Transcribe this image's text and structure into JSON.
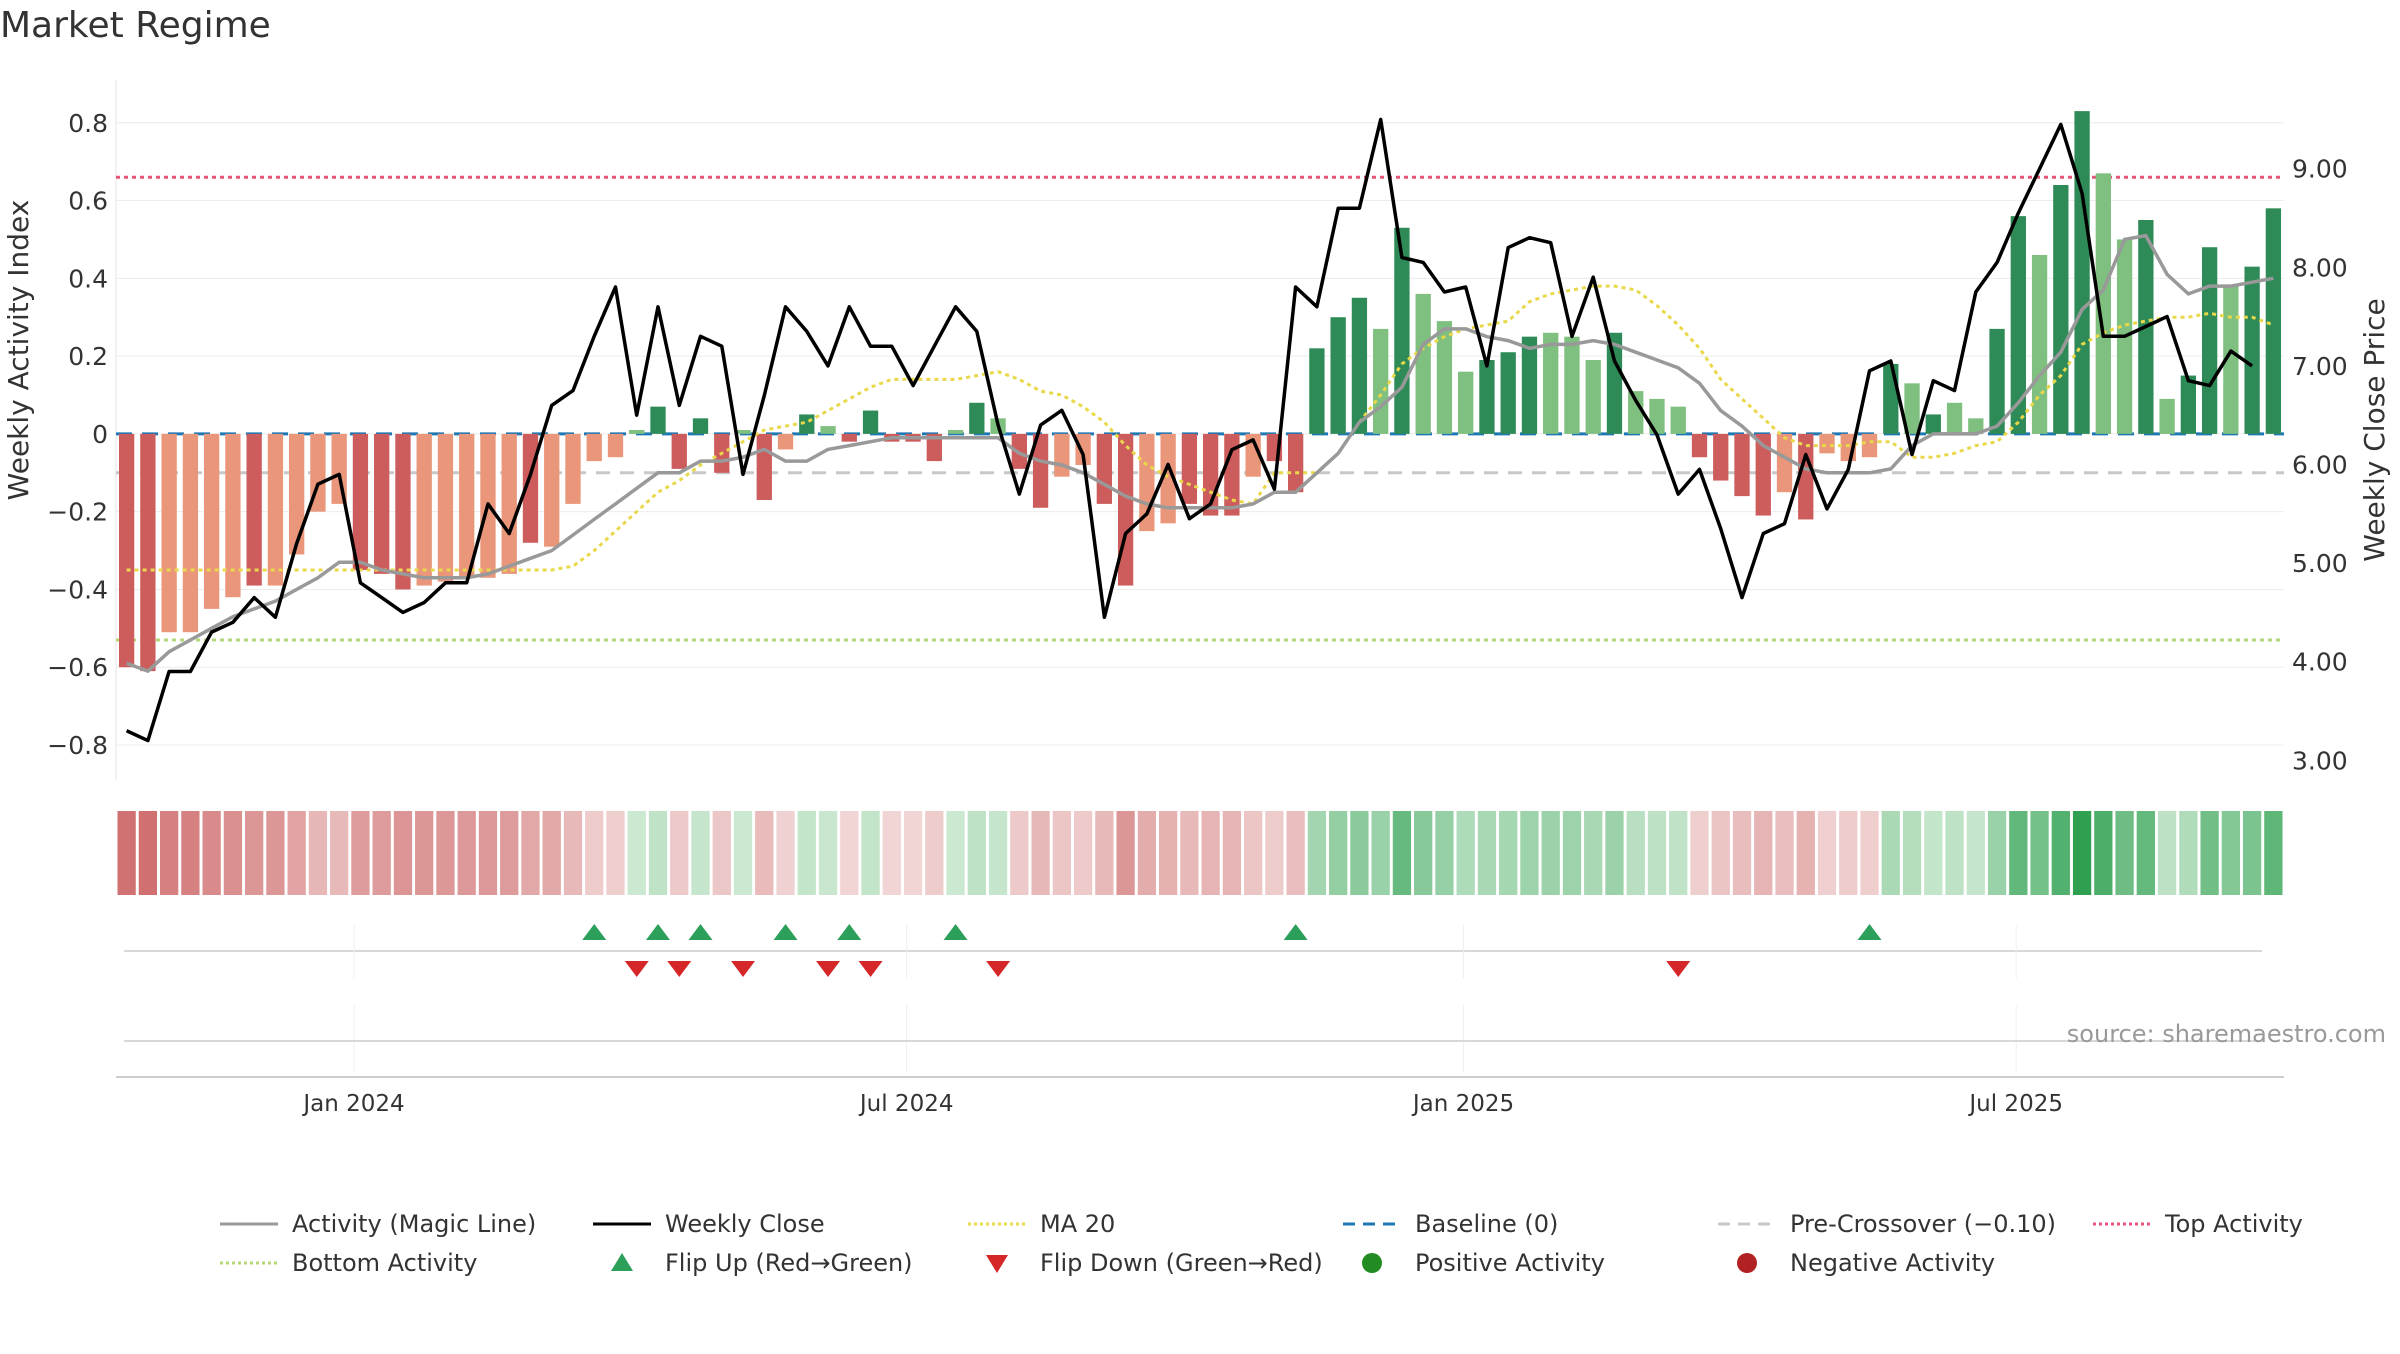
{
  "title": "Market Regime",
  "source": "source: sharemaestro.com",
  "colors": {
    "pos_dark": "#2e8b57",
    "pos_light": "#7fbf7f",
    "neg_dark": "#cd5c5c",
    "neg_light": "#e9967a",
    "close": "#000000",
    "magic": "#999999",
    "ma20": "#e8d84a",
    "baseline": "#1f77b4",
    "pre": "#c8c8c8",
    "top": "#e8557a",
    "bottom": "#b5d77a",
    "flip_up": "#2ca05a",
    "flip_down": "#d62728",
    "pos_marker": "#228b22",
    "neg_marker": "#b22222"
  },
  "chart_data": {
    "type": "bar",
    "title": "Market Regime",
    "ylabel": "Weekly Activity Index",
    "y2label": "Weekly Close Price",
    "ylim": [
      -0.89,
      0.91
    ],
    "y2lim": [
      2.8,
      9.9
    ],
    "yticks": [
      "0.8",
      "0.6",
      "0.4",
      "0.2",
      "0",
      "−0.2",
      "−0.4",
      "−0.6",
      "−0.8"
    ],
    "ytick_values": [
      0.8,
      0.6,
      0.4,
      0.2,
      0,
      -0.2,
      -0.4,
      -0.6,
      -0.8
    ],
    "y2ticks": [
      "9.00",
      "8.00",
      "7.00",
      "6.00",
      "5.00",
      "4.00",
      "3.00"
    ],
    "y2tick_values": [
      9,
      8,
      7,
      6,
      5,
      4,
      3
    ],
    "xticks": [
      "Jan 2024",
      "Jul 2024",
      "Jan 2025",
      "Jul 2025"
    ],
    "xtick_weeks": [
      11.2,
      37.2,
      63.4,
      89.4
    ],
    "top_activity": 0.66,
    "bottom_activity": -0.53,
    "pre_crossover": -0.1,
    "baseline": 0,
    "activity": [
      -0.6,
      -0.61,
      -0.51,
      -0.51,
      -0.45,
      -0.42,
      -0.39,
      -0.39,
      -0.31,
      -0.2,
      -0.18,
      -0.35,
      -0.36,
      -0.4,
      -0.39,
      -0.38,
      -0.37,
      -0.37,
      -0.36,
      -0.28,
      -0.29,
      -0.18,
      -0.07,
      -0.06,
      0.01,
      0.07,
      -0.09,
      0.04,
      -0.1,
      0.01,
      -0.17,
      -0.04,
      0.05,
      0.02,
      -0.02,
      0.06,
      -0.02,
      -0.02,
      -0.07,
      0.01,
      0.08,
      0.04,
      -0.09,
      -0.19,
      -0.11,
      -0.08,
      -0.18,
      -0.39,
      -0.25,
      -0.23,
      -0.18,
      -0.21,
      -0.21,
      -0.11,
      -0.07,
      -0.15,
      0.22,
      0.3,
      0.35,
      0.27,
      0.53,
      0.36,
      0.29,
      0.16,
      0.19,
      0.21,
      0.25,
      0.26,
      0.25,
      0.19,
      0.26,
      0.11,
      0.09,
      0.07,
      -0.06,
      -0.12,
      -0.16,
      -0.21,
      -0.15,
      -0.22,
      -0.05,
      -0.07,
      -0.06,
      0.18,
      0.13,
      0.05,
      0.08,
      0.04,
      0.27,
      0.56,
      0.46,
      0.64,
      0.83,
      0.67,
      0.5,
      0.55,
      0.09,
      0.15,
      0.48,
      0.38,
      0.43,
      0.58
    ],
    "shade": [
      "d",
      "d",
      "l",
      "l",
      "l",
      "l",
      "d",
      "l",
      "l",
      "l",
      "l",
      "d",
      "d",
      "d",
      "l",
      "l",
      "l",
      "l",
      "l",
      "d",
      "l",
      "l",
      "l",
      "l",
      "l",
      "d",
      "d",
      "d",
      "d",
      "l",
      "d",
      "l",
      "d",
      "l",
      "d",
      "d",
      "d",
      "d",
      "d",
      "l",
      "d",
      "l",
      "d",
      "d",
      "l",
      "l",
      "d",
      "d",
      "l",
      "l",
      "d",
      "d",
      "d",
      "l",
      "d",
      "d",
      "d",
      "d",
      "d",
      "l",
      "d",
      "l",
      "l",
      "l",
      "d",
      "d",
      "d",
      "l",
      "l",
      "l",
      "d",
      "l",
      "l",
      "l",
      "d",
      "d",
      "d",
      "d",
      "l",
      "d",
      "l",
      "l",
      "l",
      "d",
      "l",
      "d",
      "l",
      "l",
      "d",
      "d",
      "l",
      "d",
      "d",
      "l",
      "l",
      "d",
      "l",
      "d",
      "d",
      "l",
      "d",
      "d"
    ],
    "magic_line": [
      -0.59,
      -0.61,
      -0.56,
      -0.53,
      -0.5,
      -0.47,
      -0.45,
      -0.43,
      -0.4,
      -0.37,
      -0.33,
      -0.33,
      -0.35,
      -0.36,
      -0.37,
      -0.37,
      -0.37,
      -0.36,
      -0.34,
      -0.32,
      -0.3,
      -0.26,
      -0.22,
      -0.18,
      -0.14,
      -0.1,
      -0.1,
      -0.07,
      -0.07,
      -0.06,
      -0.04,
      -0.07,
      -0.07,
      -0.04,
      -0.03,
      -0.02,
      -0.01,
      -0.01,
      -0.01,
      -0.01,
      -0.01,
      -0.01,
      -0.05,
      -0.07,
      -0.08,
      -0.1,
      -0.13,
      -0.16,
      -0.18,
      -0.19,
      -0.19,
      -0.19,
      -0.19,
      -0.18,
      -0.15,
      -0.15,
      -0.1,
      -0.05,
      0.03,
      0.07,
      0.12,
      0.23,
      0.27,
      0.27,
      0.25,
      0.24,
      0.22,
      0.23,
      0.23,
      0.24,
      0.23,
      0.21,
      0.19,
      0.17,
      0.13,
      0.06,
      0.02,
      -0.03,
      -0.06,
      -0.09,
      -0.1,
      -0.1,
      -0.1,
      -0.09,
      -0.03,
      0.0,
      0.0,
      0.0,
      0.02,
      0.08,
      0.15,
      0.21,
      0.32,
      0.37,
      0.5,
      0.51,
      0.41,
      0.36,
      0.38,
      0.38,
      0.39,
      0.4
    ],
    "ma20": [
      -0.35,
      -0.35,
      -0.35,
      -0.35,
      -0.35,
      -0.35,
      -0.35,
      -0.35,
      -0.35,
      -0.35,
      -0.35,
      -0.35,
      -0.35,
      -0.35,
      -0.35,
      -0.35,
      -0.35,
      -0.35,
      -0.35,
      -0.35,
      -0.35,
      -0.34,
      -0.3,
      -0.25,
      -0.2,
      -0.15,
      -0.12,
      -0.08,
      -0.05,
      -0.02,
      0.01,
      0.02,
      0.03,
      0.06,
      0.09,
      0.12,
      0.14,
      0.14,
      0.14,
      0.14,
      0.15,
      0.16,
      0.14,
      0.11,
      0.1,
      0.07,
      0.03,
      -0.03,
      -0.08,
      -0.11,
      -0.13,
      -0.15,
      -0.17,
      -0.18,
      -0.1,
      -0.1,
      -0.1,
      -0.05,
      0.03,
      0.1,
      0.18,
      0.22,
      0.25,
      0.27,
      0.28,
      0.29,
      0.34,
      0.36,
      0.37,
      0.38,
      0.38,
      0.37,
      0.33,
      0.28,
      0.22,
      0.14,
      0.09,
      0.04,
      -0.01,
      -0.03,
      -0.03,
      -0.03,
      -0.02,
      -0.02,
      -0.06,
      -0.06,
      -0.05,
      -0.03,
      -0.02,
      0.03,
      0.1,
      0.15,
      0.23,
      0.26,
      0.28,
      0.29,
      0.3,
      0.3,
      0.31,
      0.3,
      0.3,
      0.28
    ],
    "weekly_close": [
      3.3,
      3.2,
      3.9,
      3.9,
      4.3,
      4.4,
      4.65,
      4.45,
      5.2,
      5.8,
      5.9,
      4.8,
      4.65,
      4.5,
      4.6,
      4.8,
      4.8,
      5.6,
      5.3,
      5.9,
      6.6,
      6.75,
      7.3,
      7.8,
      6.5,
      7.6,
      6.6,
      7.3,
      7.2,
      5.9,
      6.7,
      7.6,
      7.35,
      7.0,
      7.6,
      7.2,
      7.2,
      6.8,
      7.2,
      7.6,
      7.35,
      6.4,
      5.7,
      6.4,
      6.55,
      6.1,
      4.45,
      5.3,
      5.5,
      6.0,
      5.45,
      5.6,
      6.15,
      6.25,
      5.75,
      7.8,
      7.6,
      8.6,
      8.6,
      9.5,
      8.1,
      8.05,
      7.75,
      7.8,
      7.0,
      8.2,
      8.3,
      8.25,
      7.3,
      7.9,
      7.05,
      6.65,
      6.3,
      5.7,
      5.95,
      5.35,
      4.65,
      5.3,
      5.4,
      6.1,
      5.55,
      5.95,
      6.95,
      7.05,
      6.1,
      6.85,
      6.75,
      7.75,
      8.05,
      8.55,
      9.0,
      9.45,
      8.75,
      7.3,
      7.3,
      7.4,
      7.5,
      6.85,
      6.8,
      7.15,
      7.0
    ],
    "flip_up_weeks": [
      22,
      25,
      27,
      31,
      34,
      39,
      55,
      82
    ],
    "flip_down_weeks": [
      24,
      26,
      29,
      33,
      35,
      41,
      73
    ],
    "legend": [
      {
        "label": "Activity (Magic Line)",
        "kind": "line",
        "color": "#999999",
        "dash": ""
      },
      {
        "label": "Weekly Close",
        "kind": "line",
        "color": "#000000",
        "dash": ""
      },
      {
        "label": "MA 20",
        "kind": "line",
        "color": "#e8d84a",
        "dash": "3,3"
      },
      {
        "label": "Baseline (0)",
        "kind": "line",
        "color": "#1f77b4",
        "dash": "12,8"
      },
      {
        "label": "Pre-Crossover (−0.10)",
        "kind": "line",
        "color": "#c8c8c8",
        "dash": "12,8"
      },
      {
        "label": "Top Activity",
        "kind": "line",
        "color": "#e8557a",
        "dash": "3,3"
      },
      {
        "label": "Bottom Activity",
        "kind": "line",
        "color": "#b5d77a",
        "dash": "3,3"
      },
      {
        "label": "Flip Up (Red→Green)",
        "kind": "tri-up",
        "color": "#2ca05a"
      },
      {
        "label": "Flip Down (Green→Red)",
        "kind": "tri-down",
        "color": "#d62728"
      },
      {
        "label": "Positive Activity",
        "kind": "dot",
        "color": "#228b22"
      },
      {
        "label": "Negative Activity",
        "kind": "dot",
        "color": "#b22222"
      }
    ]
  }
}
